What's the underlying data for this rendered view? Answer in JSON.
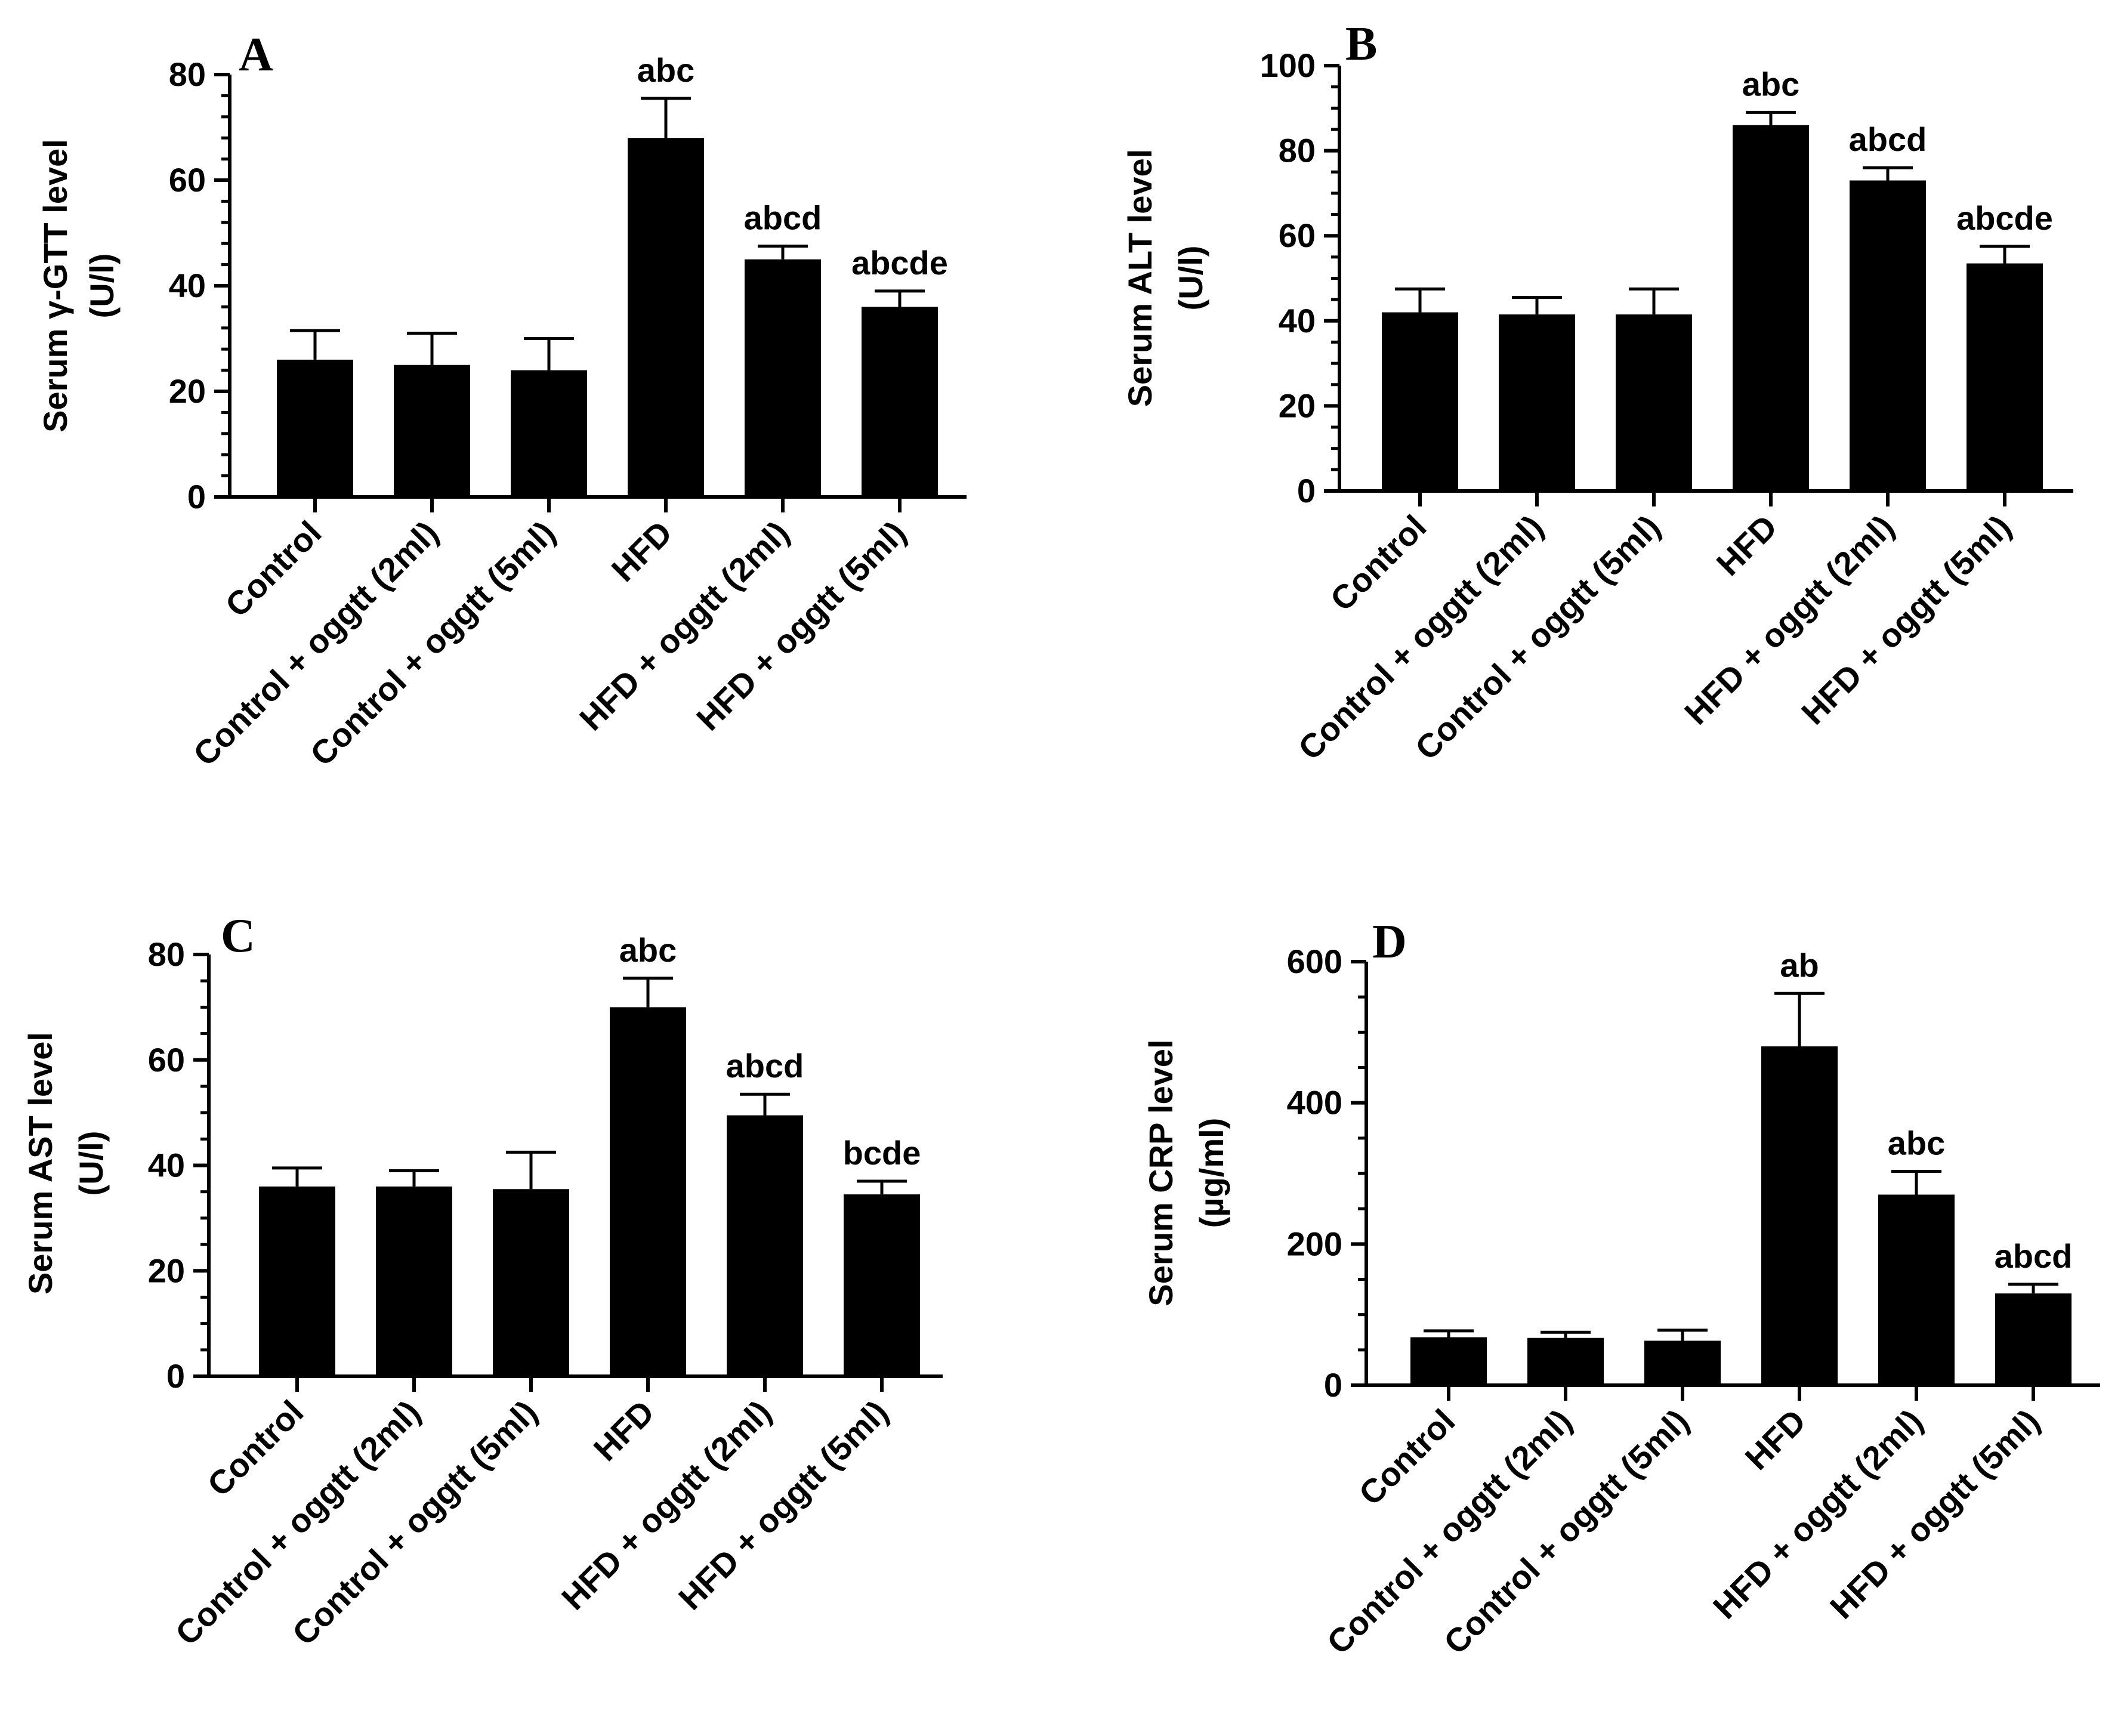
{
  "chart_data": [
    {
      "panel": "A",
      "type": "bar",
      "categories": [
        "Control",
        "Control + oggtt (2ml)",
        "Control + oggtt (5ml)",
        "HFD",
        "HFD + oggtt (2ml)",
        "HFD + oggtt (5ml)"
      ],
      "values": [
        26,
        25,
        24,
        68,
        45,
        36
      ],
      "errors": [
        5.5,
        6,
        6,
        7.5,
        2.5,
        3
      ],
      "annotations": [
        "",
        "",
        "",
        "abc",
        "abcd",
        "abcde"
      ],
      "ylabel_line1": "Serum  γ-GTT level",
      "ylabel_line2": "(U/l)",
      "ylim": [
        0,
        80
      ],
      "yticks": [
        "0",
        "20",
        "40",
        "60",
        "80"
      ],
      "minor_per_major": 5
    },
    {
      "panel": "B",
      "type": "bar",
      "categories": [
        "Control",
        "Control + oggtt (2ml)",
        "Control + oggtt (5ml)",
        "HFD",
        "HFD + oggtt (2ml)",
        "HFD + oggtt (5ml)"
      ],
      "values": [
        42,
        41.5,
        41.5,
        86,
        73,
        53.5
      ],
      "errors": [
        5.5,
        4,
        6,
        3,
        3,
        4
      ],
      "annotations": [
        "",
        "",
        "",
        "abc",
        "abcd",
        "abcde"
      ],
      "ylabel_line1": "Serum ALT level",
      "ylabel_line2": "(U/l)",
      "ylim": [
        0,
        100
      ],
      "yticks": [
        "0",
        "20",
        "40",
        "60",
        "80",
        "100"
      ],
      "minor_per_major": 4
    },
    {
      "panel": "C",
      "type": "bar",
      "categories": [
        "Control",
        "Control + oggtt (2ml)",
        "Control + oggtt (5ml)",
        "HFD",
        "HFD + oggtt (2ml)",
        "HFD + oggtt (5ml)"
      ],
      "values": [
        36,
        36,
        35.5,
        70,
        49.5,
        34.5
      ],
      "errors": [
        3.5,
        3,
        7,
        5.5,
        4,
        2.5
      ],
      "annotations": [
        "",
        "",
        "",
        "abc",
        "abcd",
        "bcde"
      ],
      "ylabel_line1": "Serum AST level",
      "ylabel_line2": "(U/l)",
      "ylim": [
        0,
        80
      ],
      "yticks": [
        "0",
        "20",
        "40",
        "60",
        "80"
      ],
      "minor_per_major": 4
    },
    {
      "panel": "D",
      "type": "bar",
      "categories": [
        "Control",
        "Control + oggtt (2ml)",
        "Control + oggtt (5ml)",
        "HFD",
        "HFD + oggtt (2ml)",
        "HFD + oggtt (5ml)"
      ],
      "values": [
        68,
        67,
        63,
        480,
        270,
        130
      ],
      "errors": [
        9,
        8,
        15,
        75,
        33,
        13
      ],
      "annotations": [
        "",
        "",
        "",
        "ab",
        "abc",
        "abcd"
      ],
      "ylabel_line1": "Serum CRP level",
      "ylabel_line2": "(µg/ml)",
      "ylim": [
        0,
        600
      ],
      "yticks": [
        "0",
        "200",
        "400",
        "600"
      ],
      "minor_per_major": 4
    }
  ]
}
